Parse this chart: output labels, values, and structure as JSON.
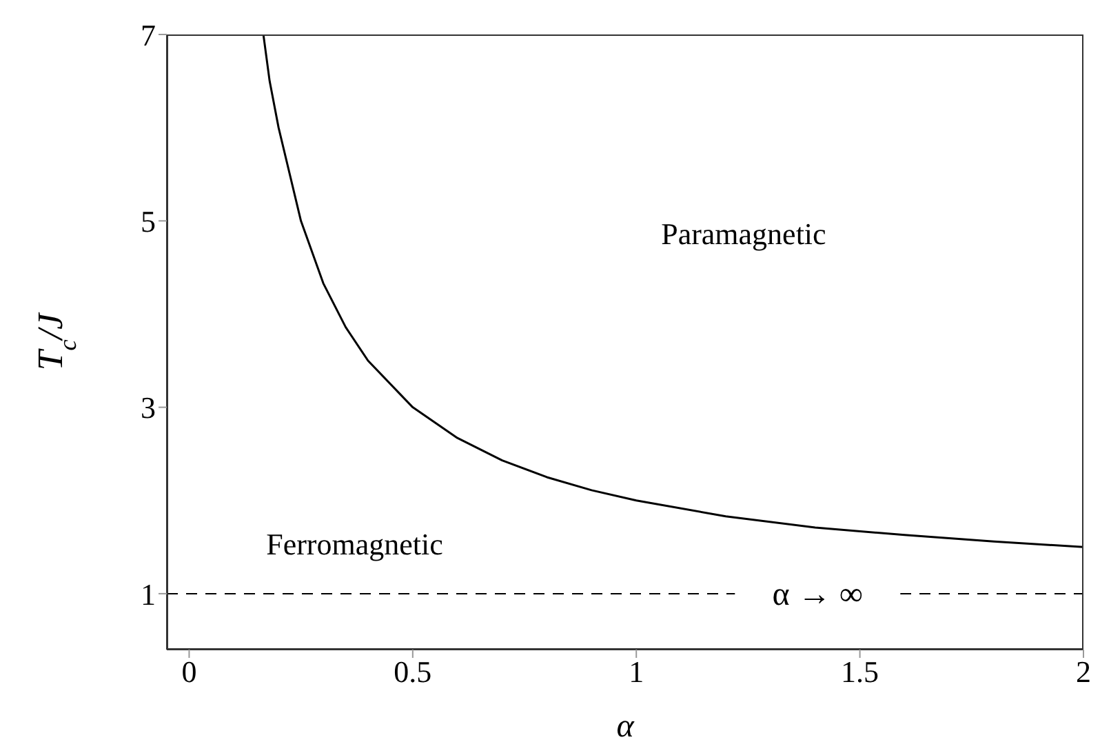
{
  "chart_data": {
    "type": "line",
    "xlabel": "α",
    "ylabel": "T$_{c}$/J",
    "x": [
      0.166,
      0.18,
      0.2,
      0.25,
      0.3,
      0.35,
      0.4,
      0.5,
      0.6,
      0.7,
      0.8,
      0.9,
      1,
      1.2,
      1.4,
      1.6,
      1.8,
      2
    ],
    "series": [
      {
        "color": "#000000",
        "values": [
          7,
          6.5,
          6,
          5,
          4.33,
          3.86,
          3.5,
          3,
          2.67,
          2.43,
          2.25,
          2.11,
          2,
          1.83,
          1.71,
          1.63,
          1.56,
          1.5
        ]
      }
    ],
    "xlim": [
      -0.05,
      2
    ],
    "xticks": [
      0,
      0.5,
      1,
      1.5,
      2
    ],
    "ylim": [
      0.4,
      7
    ],
    "yticks": [
      1,
      3,
      5,
      7
    ],
    "ref_lines": [
      {
        "axis": "y",
        "value": 1,
        "label": "α → ∞",
        "line_style": "dashed",
        "color": "#000000"
      }
    ],
    "annotations": [
      "Paramagnetic",
      "Ferromagnetic"
    ],
    "marker": "none",
    "line_style": "solid"
  }
}
